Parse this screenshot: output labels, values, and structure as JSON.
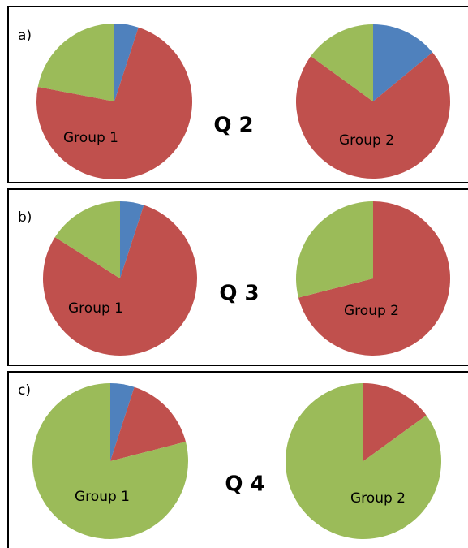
{
  "panels": [
    {
      "label": "a)",
      "title": "Q 2"
    },
    {
      "label": "b)",
      "title": "Q 3"
    },
    {
      "label": "c)",
      "title": "Q 4"
    }
  ],
  "chart_data": [
    {
      "type": "pie",
      "label": "Group 1",
      "values": [
        5,
        73,
        22
      ],
      "colors": [
        "#4f81bd",
        "#c0504d",
        "#9bbb59"
      ]
    },
    {
      "type": "pie",
      "label": "Group 2",
      "values": [
        14,
        71,
        15
      ],
      "colors": [
        "#4f81bd",
        "#c0504d",
        "#9bbb59"
      ]
    },
    {
      "type": "pie",
      "label": "Group 1",
      "values": [
        5,
        79,
        16
      ],
      "colors": [
        "#4f81bd",
        "#c0504d",
        "#9bbb59"
      ]
    },
    {
      "type": "pie",
      "label": "Group 2",
      "values": [
        0,
        71,
        29
      ],
      "colors": [
        "#4f81bd",
        "#c0504d",
        "#9bbb59"
      ]
    },
    {
      "type": "pie",
      "label": "Group 1",
      "values": [
        5,
        16,
        79
      ],
      "colors": [
        "#4f81bd",
        "#c0504d",
        "#9bbb59"
      ]
    },
    {
      "type": "pie",
      "label": "Group 2",
      "values": [
        0,
        15,
        85
      ],
      "colors": [
        "#4f81bd",
        "#c0504d",
        "#9bbb59"
      ]
    }
  ]
}
